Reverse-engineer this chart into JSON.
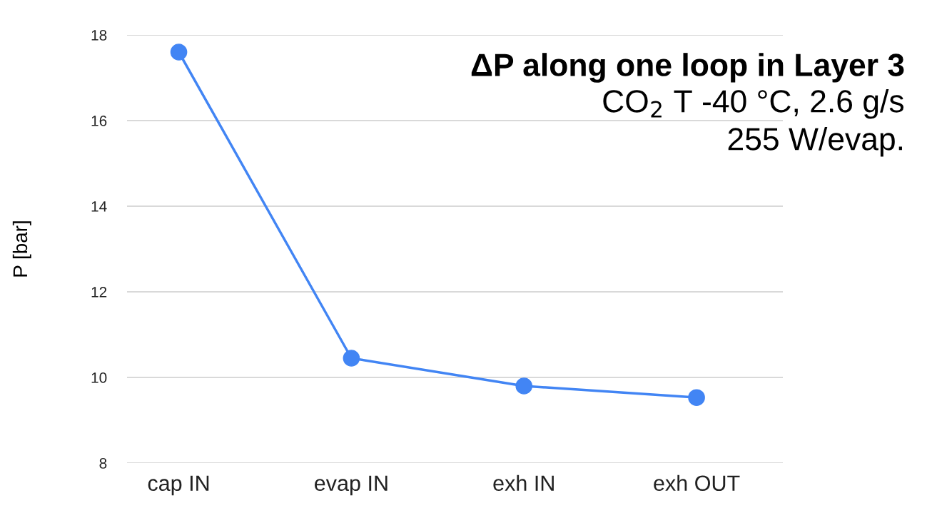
{
  "chart_data": {
    "type": "line",
    "title": "ΔP along one loop in Layer 3",
    "subtitle": "CO$_{2}$ T -40 °C, 2.6 g/s\n255 W/evap.",
    "ylabel": "P [bar]",
    "categories": [
      "cap IN",
      "evap IN",
      "exh IN",
      "exh OUT"
    ],
    "series": [
      {
        "color": "#4285f4",
        "values": [
          17.6,
          10.45,
          9.8,
          9.53
        ]
      }
    ],
    "ylim": [
      8,
      18
    ],
    "yticks": [
      8,
      10,
      12,
      14,
      16,
      18
    ],
    "grid": "y",
    "marker": "circle",
    "line_style": "solid",
    "legend": false
  }
}
